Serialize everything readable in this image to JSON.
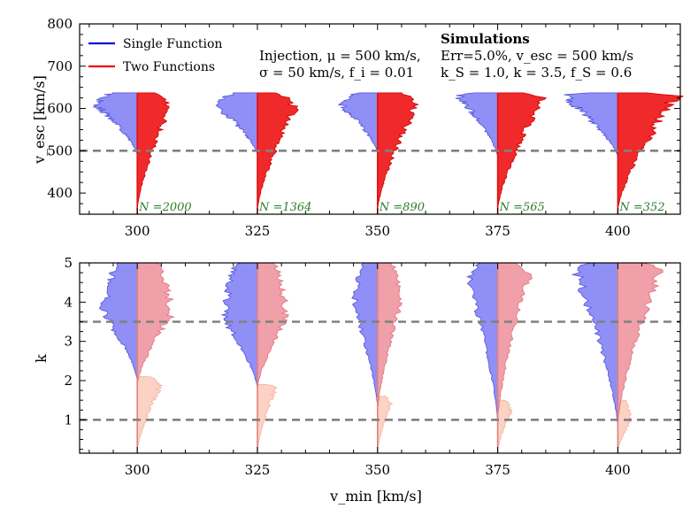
{
  "chart_data": [
    {
      "type": "violin",
      "panel": "top",
      "xlabel": "",
      "ylabel": "v_esc [km/s]",
      "xlim": [
        288,
        413
      ],
      "ylim": [
        350,
        800
      ],
      "x_ticks": [
        300,
        325,
        350,
        375,
        400
      ],
      "y_ticks": [
        400,
        500,
        600,
        700,
        800
      ],
      "reference_line": {
        "y": 500,
        "style": "dashed",
        "color": "#808080"
      },
      "legend": {
        "placement": "top-left",
        "entries": [
          {
            "label": "Single Function",
            "color": "#0000dd"
          },
          {
            "label": "Two Functions",
            "color": "#ee0000"
          }
        ]
      },
      "annotation_left": {
        "line1": "Injection, μ = 500 km/s,",
        "line2": "σ = 50 km/s, f_i = 0.01"
      },
      "annotation_right": {
        "title": "Simulations",
        "line1": "Err=5.0%, v_esc = 500 km/s",
        "line2": "k_S = 1.0, k = 3.5, f_S = 0.6"
      },
      "violins": [
        {
          "x": 300,
          "n_label": "N =2000",
          "single": {
            "min": 490,
            "max": 637,
            "peak": 610,
            "width": 1.6
          },
          "two": {
            "min": 360,
            "max": 637,
            "peak": 600,
            "width": 1.2
          }
        },
        {
          "x": 325,
          "n_label": "N =1364",
          "single": {
            "min": 490,
            "max": 637,
            "peak": 605,
            "width": 1.5
          },
          "two": {
            "min": 360,
            "max": 637,
            "peak": 600,
            "width": 1.4
          }
        },
        {
          "x": 350,
          "n_label": "N =890",
          "single": {
            "min": 495,
            "max": 637,
            "peak": 610,
            "width": 1.4
          },
          "two": {
            "min": 360,
            "max": 637,
            "peak": 610,
            "width": 1.5
          }
        },
        {
          "x": 375,
          "n_label": "N =565",
          "single": {
            "min": 485,
            "max": 637,
            "peak": 630,
            "width": 1.5
          },
          "two": {
            "min": 360,
            "max": 637,
            "peak": 625,
            "width": 1.7
          }
        },
        {
          "x": 400,
          "n_label": "N =352",
          "single": {
            "min": 485,
            "max": 637,
            "peak": 632,
            "width": 2.1
          },
          "two": {
            "min": 360,
            "max": 637,
            "peak": 630,
            "width": 2.2
          }
        }
      ],
      "colors": {
        "single_fill": "#8f8ff5",
        "single_edge": "#5050e0",
        "two_fill": "#f02a2a",
        "two_edge": "#cc0000",
        "stem": "#e01010"
      }
    },
    {
      "type": "violin",
      "panel": "bottom",
      "xlabel": "v_min [km/s]",
      "ylabel": "k",
      "xlim": [
        288,
        413
      ],
      "ylim": [
        0.15,
        5
      ],
      "x_ticks": [
        300,
        325,
        350,
        375,
        400
      ],
      "y_ticks": [
        1,
        2,
        3,
        4,
        5
      ],
      "reference_lines": [
        {
          "y": 3.5,
          "style": "dashed",
          "color": "#808080"
        },
        {
          "y": 1.0,
          "style": "dashed",
          "color": "#808080"
        }
      ],
      "violins": [
        {
          "x": 300,
          "single": {
            "min": 2.0,
            "max": 5.0,
            "peak": 3.7,
            "width": 1.3
          },
          "two": {
            "min": 1.9,
            "max": 5.0,
            "peak": 3.7,
            "width": 1.3
          },
          "two_secondary": {
            "min": 0.2,
            "max": 2.1,
            "peak": 1.9,
            "width": 0.9
          }
        },
        {
          "x": 325,
          "single": {
            "min": 1.8,
            "max": 5.0,
            "peak": 3.6,
            "width": 1.3
          },
          "two": {
            "min": 1.8,
            "max": 5.0,
            "peak": 3.6,
            "width": 1.1
          },
          "two_secondary": {
            "min": 0.2,
            "max": 1.9,
            "peak": 1.8,
            "width": 0.7
          }
        },
        {
          "x": 350,
          "single": {
            "min": 1.3,
            "max": 5.0,
            "peak": 3.9,
            "width": 0.9
          },
          "two": {
            "min": 1.2,
            "max": 5.0,
            "peak": 4.0,
            "width": 0.9
          },
          "two_secondary": {
            "min": 0.2,
            "max": 1.6,
            "peak": 1.4,
            "width": 0.5
          }
        },
        {
          "x": 375,
          "single": {
            "min": 0.9,
            "max": 5.0,
            "peak": 4.6,
            "width": 1.1
          },
          "two": {
            "min": 1.0,
            "max": 5.0,
            "peak": 4.7,
            "width": 1.2
          },
          "two_secondary": {
            "min": 0.2,
            "max": 1.5,
            "peak": 1.2,
            "width": 0.5
          }
        },
        {
          "x": 400,
          "single": {
            "min": 0.8,
            "max": 5.0,
            "peak": 4.8,
            "width": 1.6
          },
          "two": {
            "min": 0.9,
            "max": 5.0,
            "peak": 4.8,
            "width": 1.6
          },
          "two_secondary": {
            "min": 0.2,
            "max": 1.5,
            "peak": 1.0,
            "width": 0.5
          }
        }
      ],
      "colors": {
        "single_fill": "#8f8ff5",
        "single_edge": "#5050e0",
        "two_fill": "#f0a0a8",
        "two_edge": "#e07080",
        "secondary_fill": "#fbd2c4",
        "secondary_edge": "#f0b4a0",
        "stem": "#e08080"
      }
    }
  ]
}
